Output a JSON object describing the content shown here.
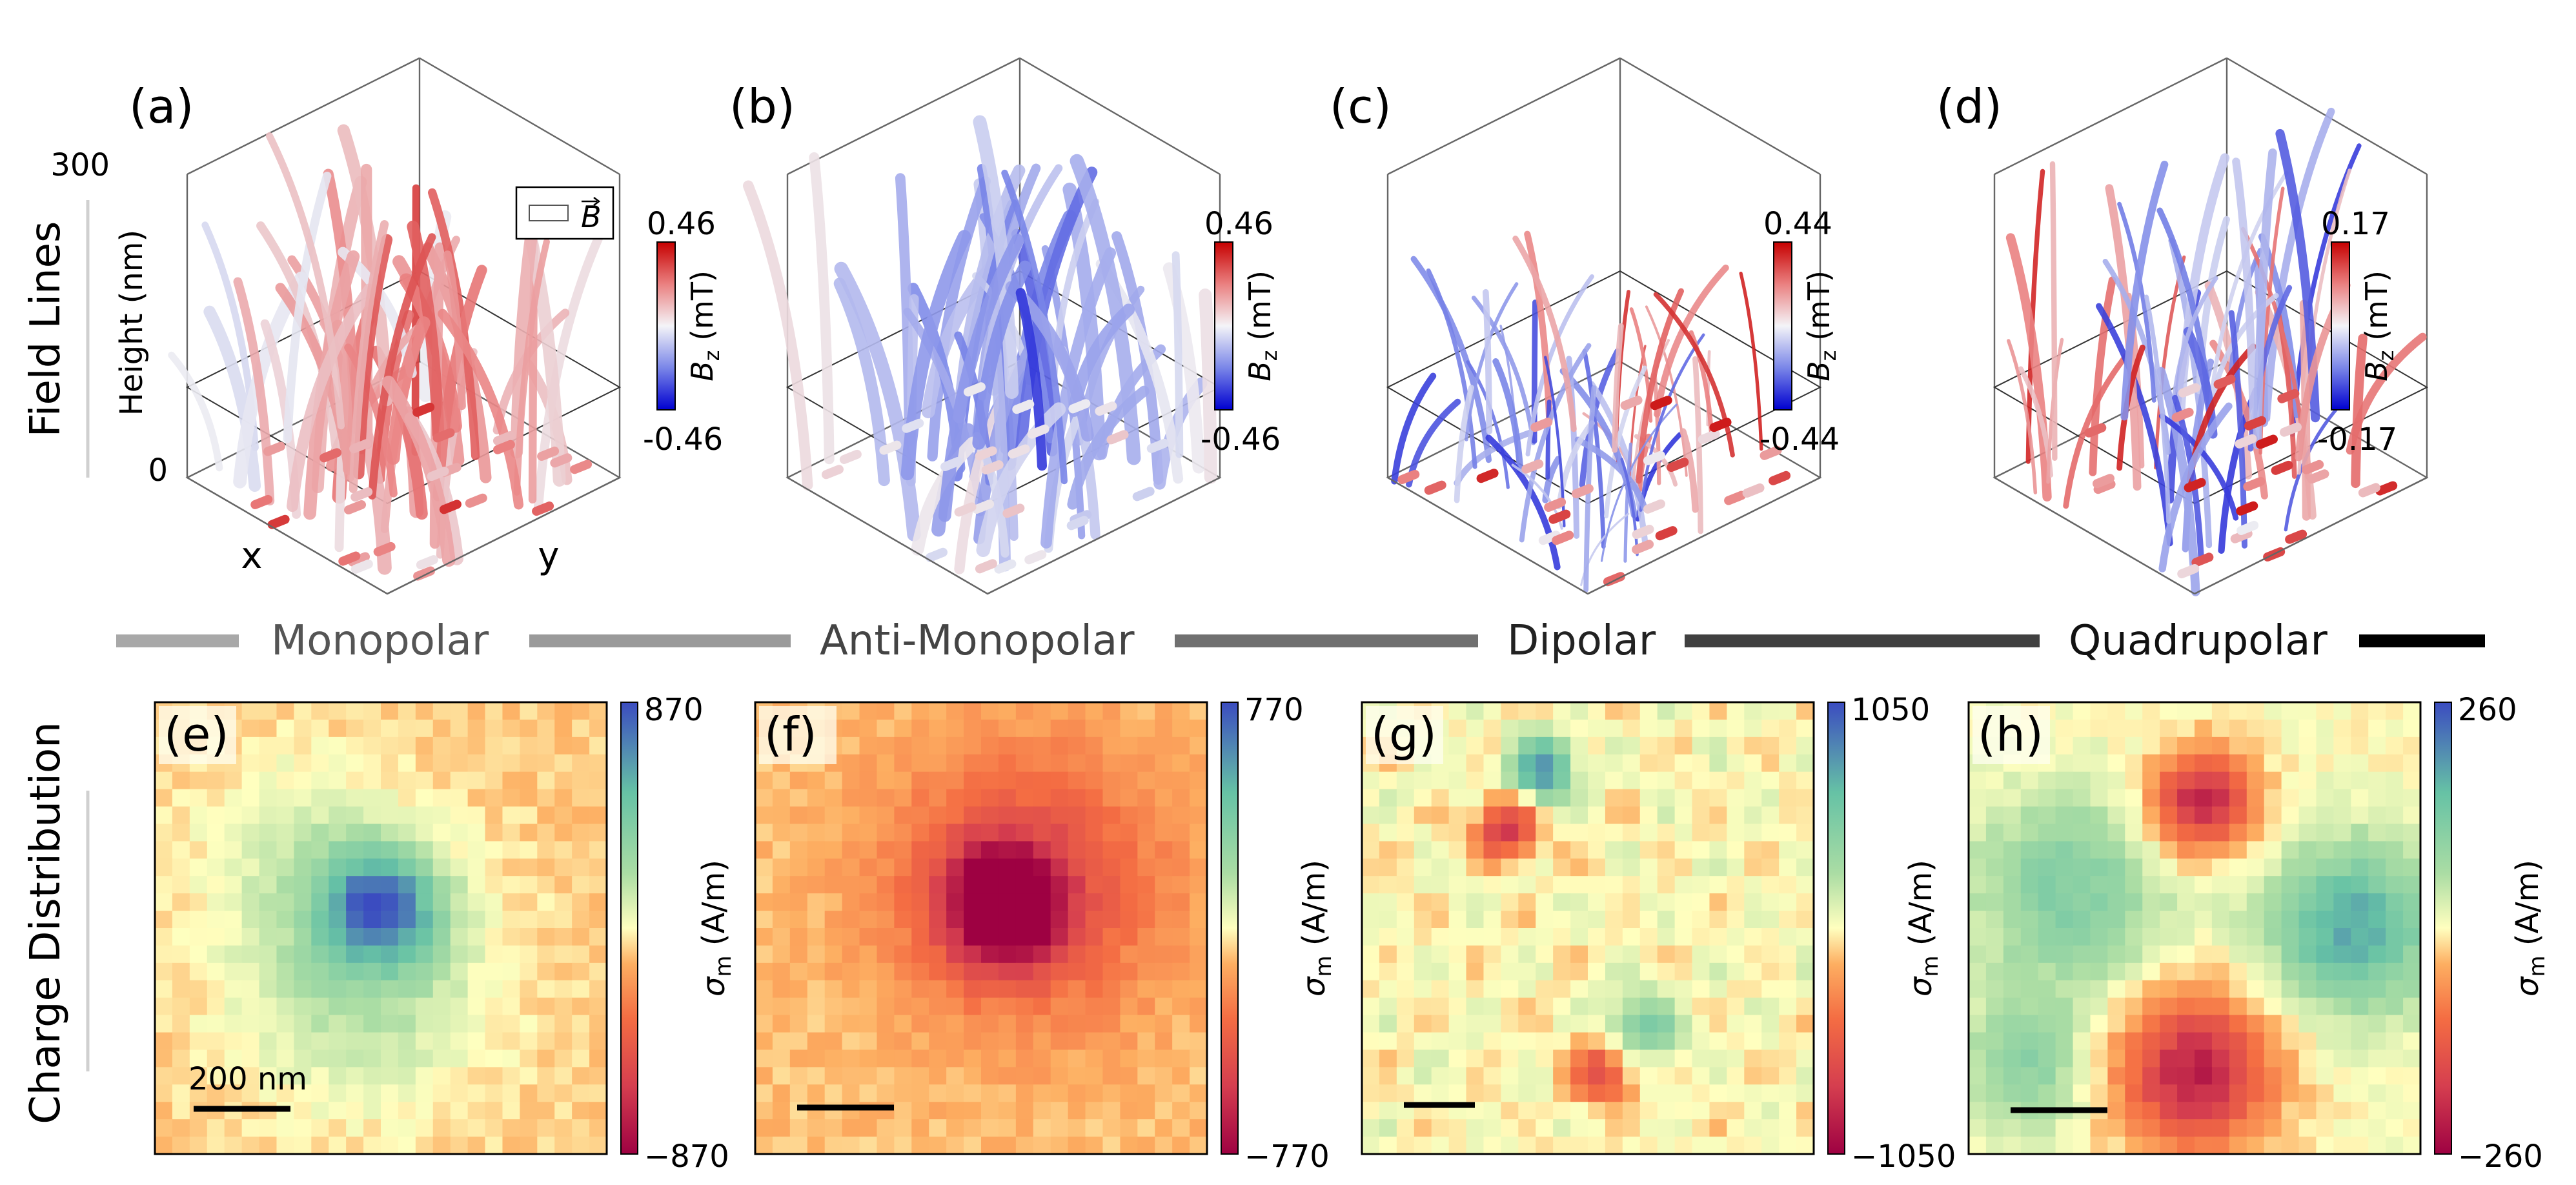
{
  "row_labels": {
    "top": "Field Lines",
    "bottom": "Charge Distribution"
  },
  "categories": [
    {
      "name": "Monopolar",
      "color": "#a8a8a8"
    },
    {
      "name": "Anti-Monopolar",
      "color": "#9a9a9a"
    },
    {
      "name": "Dipolar",
      "color": "#707070"
    },
    {
      "name": "Quadrupolar",
      "color": "#404040"
    }
  ],
  "end_bar_color": "#000000",
  "field_panels": [
    {
      "label": "(a)",
      "cbar_max": "0.46",
      "cbar_min": "-0.46",
      "cbar_label": "B",
      "cbar_sub": "z",
      "cbar_unit": " (mT)",
      "z_label": "Height (nm)",
      "z_max": "300",
      "z_min": "0",
      "x_label": "x",
      "y_label": "y",
      "legend": "B",
      "pattern": "monopolar"
    },
    {
      "label": "(b)",
      "cbar_max": "0.46",
      "cbar_min": "-0.46",
      "cbar_label": "B",
      "cbar_sub": "z",
      "cbar_unit": " (mT)",
      "pattern": "anti-monopolar"
    },
    {
      "label": "(c)",
      "cbar_max": "0.44",
      "cbar_min": "-0.44",
      "cbar_label": "B",
      "cbar_sub": "z",
      "cbar_unit": " (mT)",
      "pattern": "dipolar"
    },
    {
      "label": "(d)",
      "cbar_max": "0.17",
      "cbar_min": "-0.17",
      "cbar_label": "B",
      "cbar_sub": "z",
      "cbar_unit": " (mT)",
      "pattern": "quadrupolar"
    }
  ],
  "charge_panels": [
    {
      "label": "(e)",
      "cbar_max": "870",
      "cbar_min": "−870",
      "cbar_label": "σ",
      "cbar_sub": "m",
      "cbar_unit": " (A/m)",
      "scale_bar": "200 nm",
      "pattern": "monopolar"
    },
    {
      "label": "(f)",
      "cbar_max": "770",
      "cbar_min": "−770",
      "cbar_label": "σ",
      "cbar_sub": "m",
      "cbar_unit": " (A/m)",
      "pattern": "anti-monopolar"
    },
    {
      "label": "(g)",
      "cbar_max": "1050",
      "cbar_min": "−1050",
      "cbar_label": "σ",
      "cbar_sub": "m",
      "cbar_unit": " (A/m)",
      "pattern": "dipolar"
    },
    {
      "label": "(h)",
      "cbar_max": "260",
      "cbar_min": "−260",
      "cbar_label": "σ",
      "cbar_sub": "m",
      "cbar_unit": " (A/m)",
      "pattern": "quadrupolar"
    }
  ]
}
